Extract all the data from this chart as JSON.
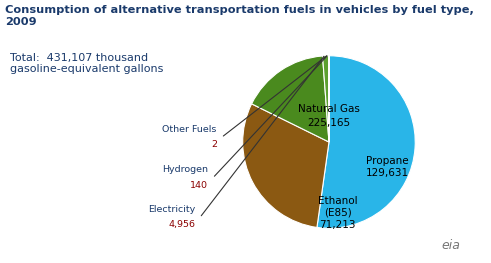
{
  "title": "Consumption of alternative transportation fuels in vehicles by fuel type, 2009",
  "subtitle": "Total:  431,107 thousand\ngasoline-equivalent gallons",
  "values": [
    225165,
    129631,
    71213,
    4956,
    140,
    2
  ],
  "slice_colors": [
    "#29B5E8",
    "#8B5912",
    "#4A8A1E",
    "#5CA030",
    "#DBA800",
    "#1A90CC"
  ],
  "startangle": 90,
  "background_color": "#FFFFFF",
  "title_color": "#1A3A6B",
  "subtitle_color": "#1A3A6B",
  "label_name_color": "#1A3A6B",
  "label_value_color": "#8B0000",
  "eia_color": "#777777"
}
